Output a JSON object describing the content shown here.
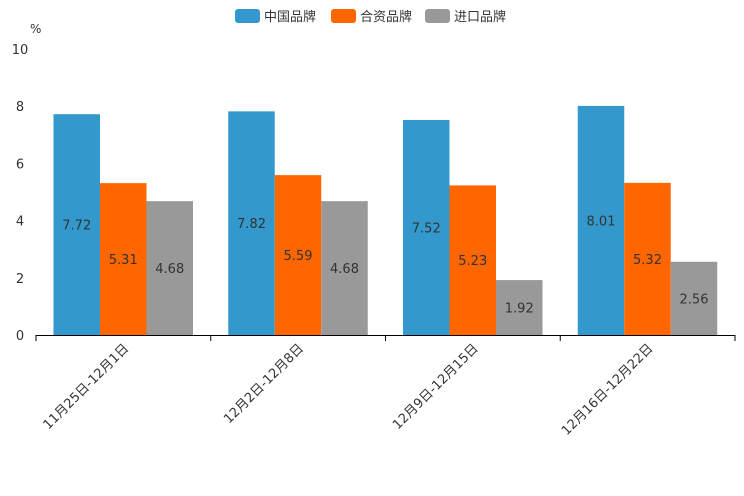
{
  "chart_data": {
    "type": "bar",
    "unit": "%",
    "categories": [
      "11月25日-12月1日",
      "12月2日-12月8日",
      "12月9日-12月15日",
      "12月16日-12月22日"
    ],
    "series": [
      {
        "name": "中国品牌",
        "color": "#3399cc",
        "values": [
          7.72,
          7.82,
          7.52,
          8.01
        ]
      },
      {
        "name": "合资品牌",
        "color": "#ff6600",
        "values": [
          5.31,
          5.59,
          5.23,
          5.32
        ]
      },
      {
        "name": "进口品牌",
        "color": "#999999",
        "values": [
          4.68,
          4.68,
          1.92,
          2.56
        ]
      }
    ],
    "value_labels": [
      [
        "7.72",
        "7.82",
        "7.52",
        "8.01"
      ],
      [
        "5.31",
        "5.59",
        "5.23",
        "5.32"
      ],
      [
        "4.68",
        "4.68",
        "1.92",
        "2.56"
      ]
    ],
    "y_ticks": [
      "0",
      "2",
      "4",
      "6",
      "8",
      "10"
    ],
    "ylim": [
      0,
      10
    ],
    "legend_position": "top-center",
    "grid": false
  }
}
